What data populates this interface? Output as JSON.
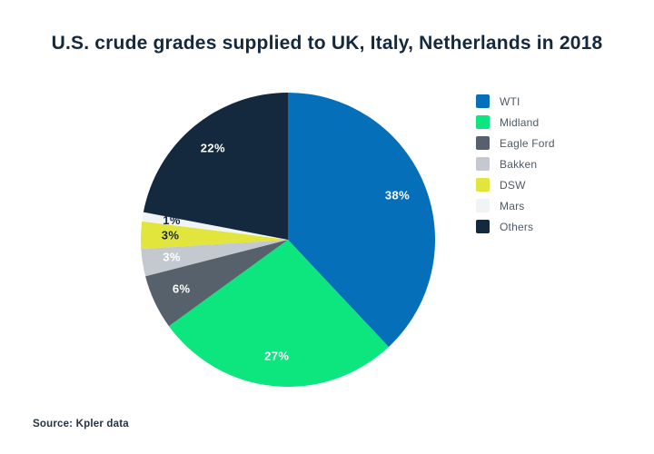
{
  "header": {
    "title": "U.S. crude grades supplied to UK, Italy, Netherlands in 2018"
  },
  "footer": {
    "source": "Source: Kpler data"
  },
  "chart_data": {
    "type": "pie",
    "title": "U.S. crude grades supplied to UK, Italy, Netherlands in 2018",
    "start_angle_deg": 0,
    "direction": "clockwise",
    "legend_position": "right",
    "total": 100,
    "segments": [
      {
        "label": "WTI",
        "value": 38,
        "display": "38%",
        "color": "#0570b9",
        "label_color": "#ffffff"
      },
      {
        "label": "Midland",
        "value": 27,
        "display": "27%",
        "color": "#0de57e",
        "label_color": "#ffffff"
      },
      {
        "label": "Eagle Ford",
        "value": 6,
        "display": "6%",
        "color": "#57616b",
        "label_color": "#ffffff"
      },
      {
        "label": "Bakken",
        "value": 3,
        "display": "3%",
        "color": "#c3c9cf",
        "label_color": "#ffffff"
      },
      {
        "label": "DSW",
        "value": 3,
        "display": "3%",
        "color": "#e1e53c",
        "label_color": "#15293e"
      },
      {
        "label": "Mars",
        "value": 1,
        "display": "1%",
        "color": "#f0f4f6",
        "label_color": "#15293e"
      },
      {
        "label": "Others",
        "value": 22,
        "display": "22%",
        "color": "#15293e",
        "label_color": "#ffffff"
      }
    ]
  }
}
